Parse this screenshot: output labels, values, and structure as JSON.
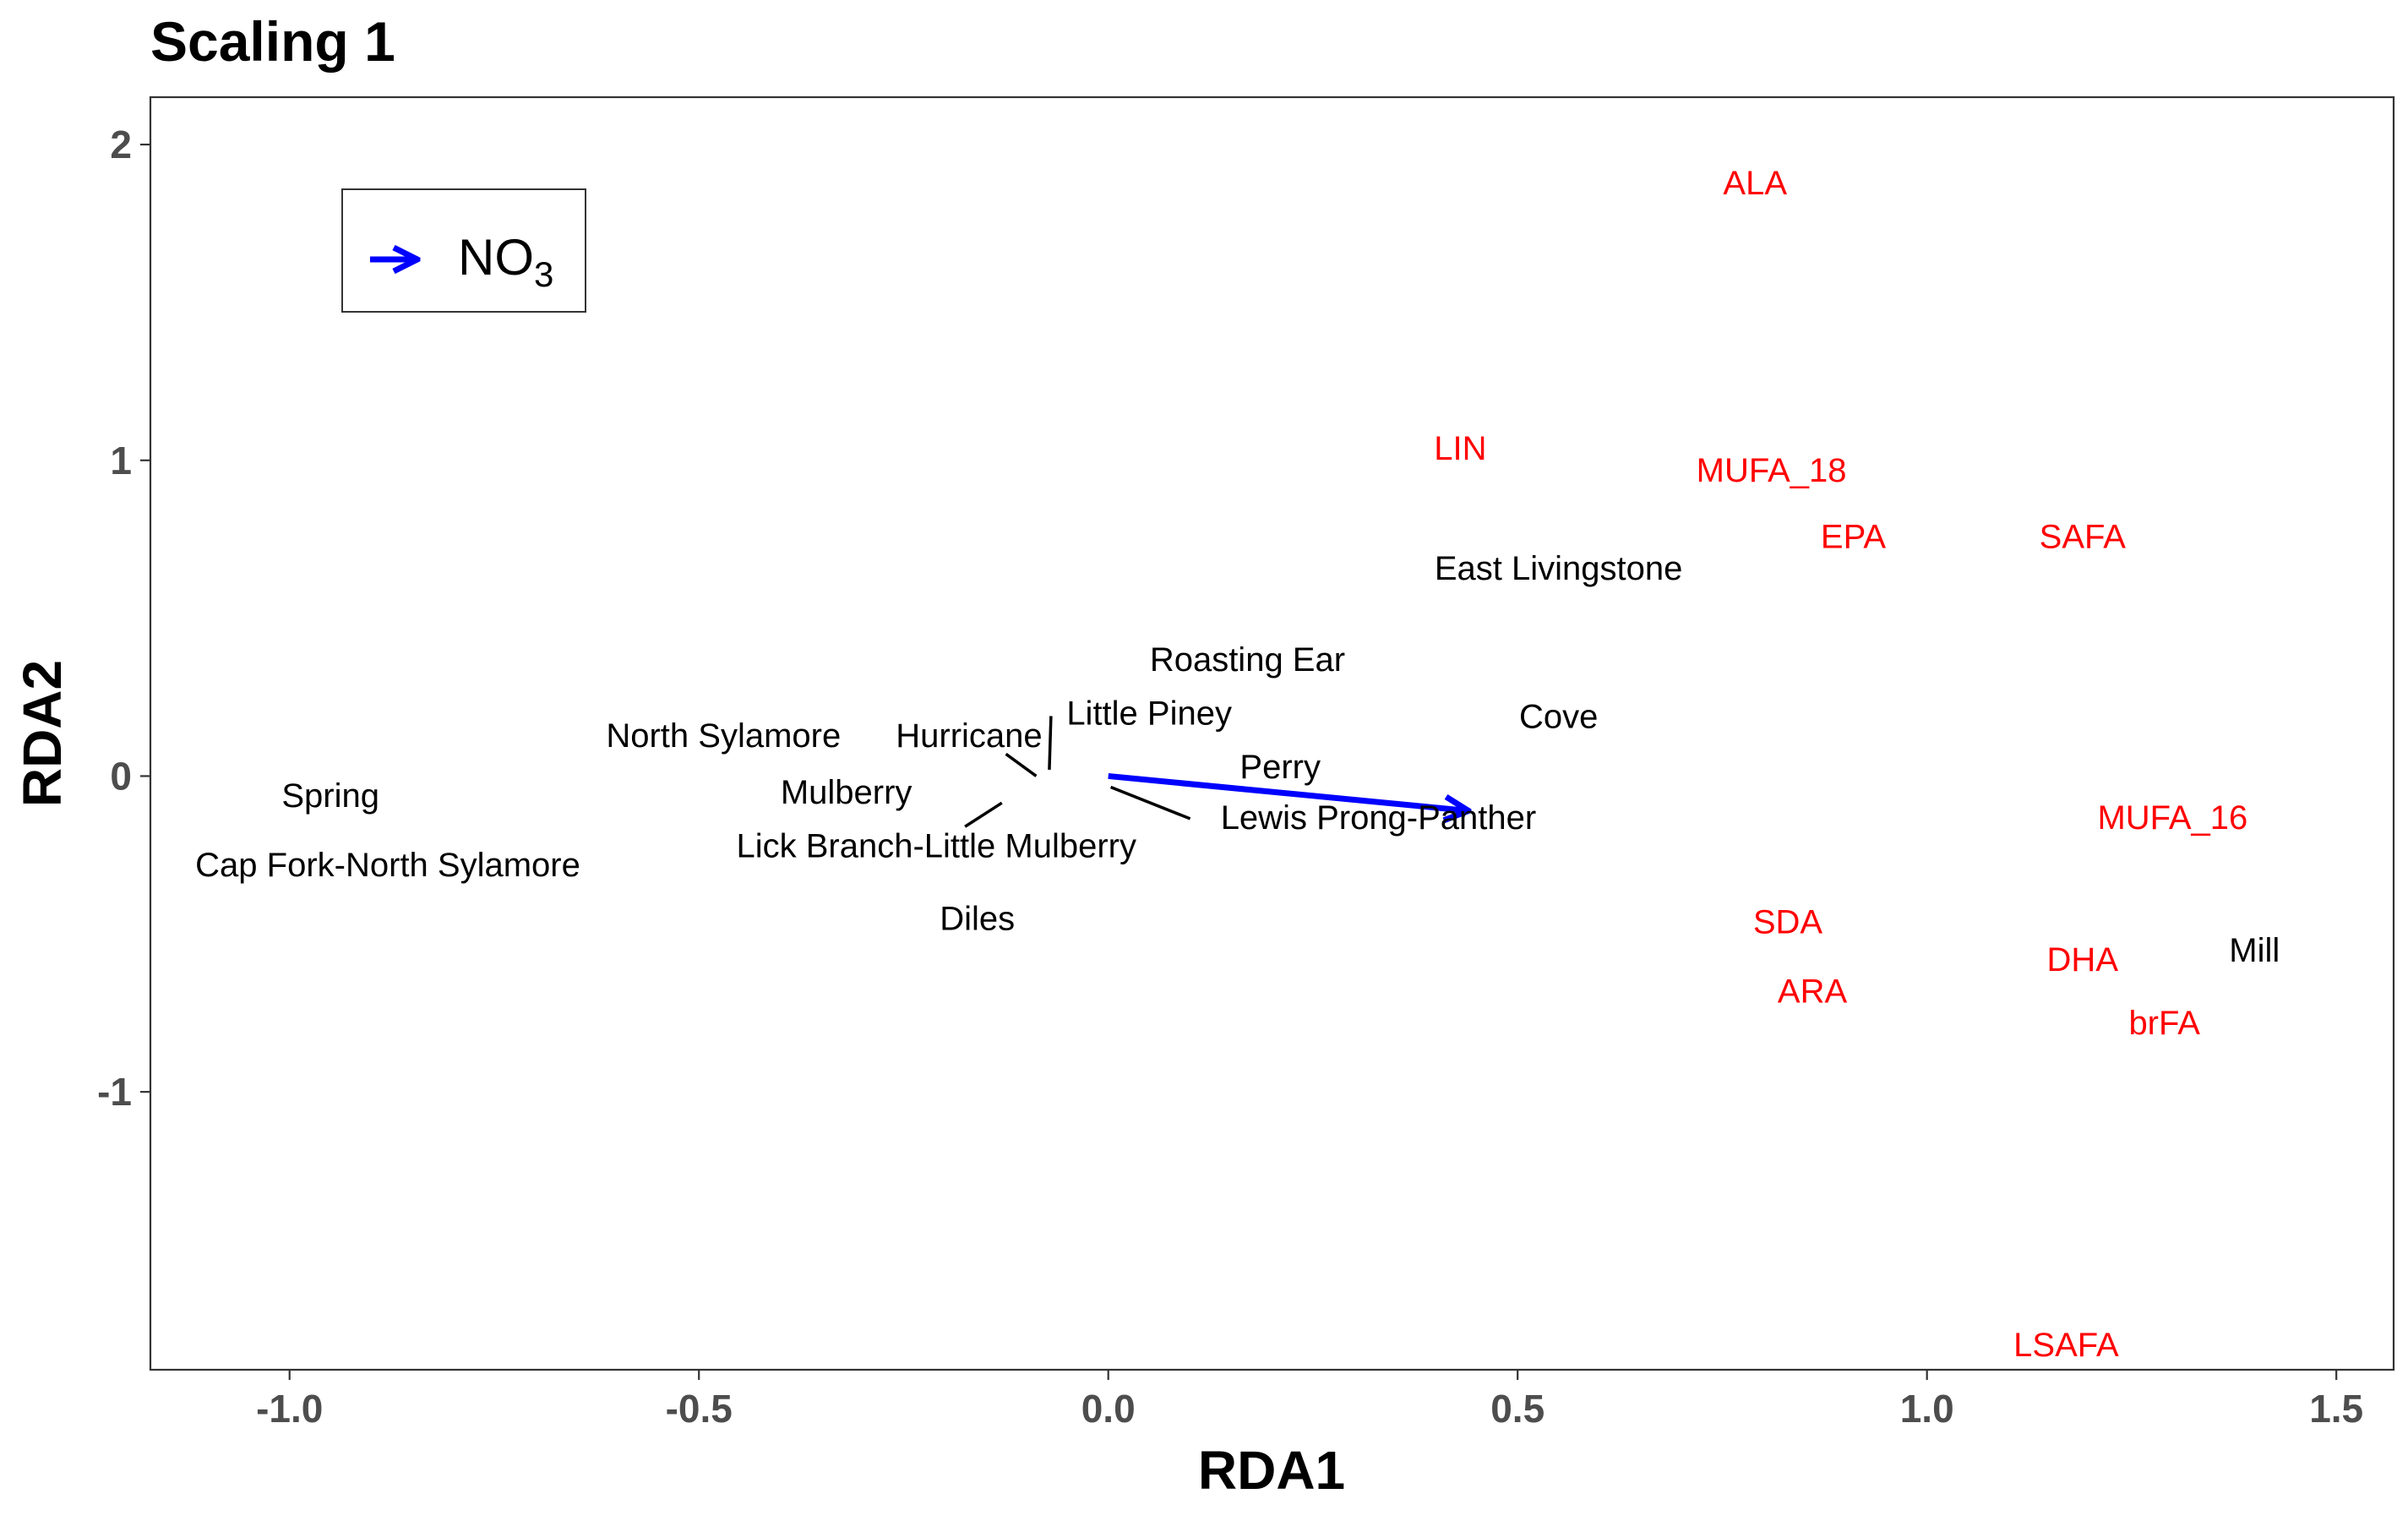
{
  "colors": {
    "site_text": "#000000",
    "species_text": "#ff0000",
    "arrow": "#0000ff",
    "axis_tick_text": "#4d4d4d",
    "panel_border": "#333333"
  },
  "chart_data": {
    "type": "scatter",
    "title": "Scaling 1",
    "xlabel": "RDA1",
    "ylabel": "RDA2",
    "xlim": [
      -1.17,
      1.57
    ],
    "ylim": [
      -1.88,
      2.15
    ],
    "grid": false,
    "x_ticks": [
      -1.0,
      -0.5,
      0.0,
      0.5,
      1.0,
      1.5
    ],
    "x_tick_labels": [
      "-1.0",
      "-0.5",
      "0.0",
      "0.5",
      "1.0",
      "1.5"
    ],
    "y_ticks": [
      -1,
      0,
      1,
      2
    ],
    "y_tick_labels": [
      "-1",
      "0",
      "1",
      "2"
    ],
    "legend": {
      "position": "top-left",
      "entries": [
        {
          "label": "NO",
          "subscript": "3",
          "symbol": "arrow",
          "color": "#0000ff"
        }
      ]
    },
    "arrows": [
      {
        "name": "NO3",
        "x0": 0.0,
        "y0": 0.0,
        "x1": 0.44,
        "y1": -0.11,
        "color": "#0000ff"
      }
    ],
    "site_labels": [
      {
        "label": "Spring",
        "x": -0.95,
        "y": -0.06
      },
      {
        "label": "Cap Fork-North Sylamore",
        "x": -0.88,
        "y": -0.28
      },
      {
        "label": "North Sylamore",
        "x": -0.47,
        "y": 0.13
      },
      {
        "label": "Mulberry",
        "x": -0.32,
        "y": -0.05
      },
      {
        "label": "Lick Branch-Little Mulberry",
        "x": -0.21,
        "y": -0.22
      },
      {
        "label": "Hurricane",
        "x": -0.17,
        "y": 0.13
      },
      {
        "label": "Little Piney",
        "x": 0.05,
        "y": 0.2
      },
      {
        "label": "Roasting Ear",
        "x": 0.17,
        "y": 0.37
      },
      {
        "label": "Perry",
        "x": 0.21,
        "y": 0.03
      },
      {
        "label": "Lewis Prong-Panther",
        "x": 0.33,
        "y": -0.13
      },
      {
        "label": "Diles",
        "x": -0.16,
        "y": -0.45
      },
      {
        "label": "East Livingstone",
        "x": 0.55,
        "y": 0.66
      },
      {
        "label": "Cove",
        "x": 0.55,
        "y": 0.19
      },
      {
        "label": "Mill",
        "x": 1.4,
        "y": -0.55
      }
    ],
    "label_segments": [
      {
        "x0": -0.125,
        "y0": 0.07,
        "x1": -0.088,
        "y1": 0.0
      },
      {
        "x0": -0.07,
        "y0": 0.19,
        "x1": -0.072,
        "y1": 0.02
      },
      {
        "x0": -0.13,
        "y0": -0.085,
        "x1": -0.175,
        "y1": -0.16
      },
      {
        "x0": 0.003,
        "y0": -0.035,
        "x1": 0.1,
        "y1": -0.135
      }
    ],
    "species_labels": [
      {
        "label": "ALA",
        "x": 0.79,
        "y": 1.88
      },
      {
        "label": "LIN",
        "x": 0.43,
        "y": 1.04
      },
      {
        "label": "MUFA_18",
        "x": 0.81,
        "y": 0.97
      },
      {
        "label": "EPA",
        "x": 0.91,
        "y": 0.76
      },
      {
        "label": "SAFA",
        "x": 1.19,
        "y": 0.76
      },
      {
        "label": "MUFA_16",
        "x": 1.3,
        "y": -0.13
      },
      {
        "label": "SDA",
        "x": 0.83,
        "y": -0.46
      },
      {
        "label": "DHA",
        "x": 1.19,
        "y": -0.58
      },
      {
        "label": "ARA",
        "x": 0.86,
        "y": -0.68
      },
      {
        "label": "brFA",
        "x": 1.29,
        "y": -0.78
      },
      {
        "label": "LSAFA",
        "x": 1.17,
        "y": -1.8
      }
    ]
  }
}
